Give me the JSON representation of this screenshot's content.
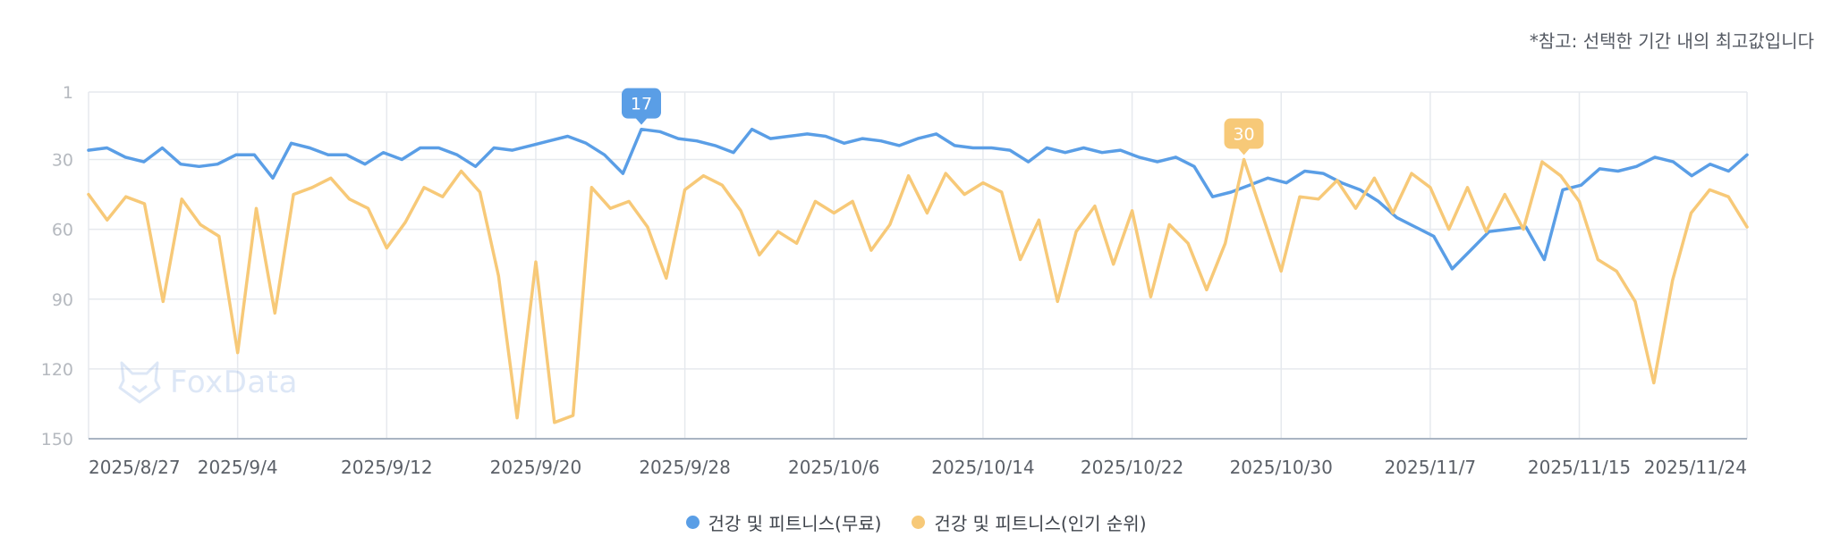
{
  "note": "*참고: 선택한 기간 내의 최고값입니다",
  "watermark": "FoxData",
  "colors": {
    "series_free": "#5a9ee6",
    "series_top": "#f7c978",
    "grid": "#e6e9ee",
    "axis_text": "#b5b9bf",
    "date_text": "#5b6068"
  },
  "chart_data": {
    "type": "line",
    "y_reversed": true,
    "ylim": [
      1,
      150
    ],
    "yticks": [
      1,
      30,
      60,
      90,
      120,
      150
    ],
    "x_start": "2025/8/27",
    "x_end": "2025/11/24",
    "x_tick_labels": [
      "2025/8/27",
      "2025/9/4",
      "2025/9/12",
      "2025/9/20",
      "2025/9/28",
      "2025/10/6",
      "2025/10/14",
      "2025/10/22",
      "2025/10/30",
      "2025/11/7",
      "2025/11/15",
      "2025/11/24"
    ],
    "grid": true,
    "legend_position": "bottom",
    "series": [
      {
        "name": "건강 및 피트니스(무료)",
        "color": "#5a9ee6",
        "peak_label": "17",
        "values": [
          26,
          25,
          29,
          31,
          25,
          32,
          33,
          32,
          28,
          28,
          38,
          23,
          25,
          28,
          28,
          32,
          27,
          30,
          25,
          25,
          28,
          33,
          25,
          26,
          24,
          22,
          20,
          23,
          28,
          36,
          17,
          18,
          21,
          22,
          24,
          27,
          17,
          21,
          20,
          19,
          20,
          23,
          21,
          22,
          24,
          21,
          19,
          24,
          25,
          25,
          26,
          31,
          25,
          27,
          25,
          27,
          26,
          29,
          31,
          29,
          33,
          46,
          44,
          41,
          38,
          40,
          35,
          36,
          40,
          43,
          48,
          55,
          59,
          63,
          77,
          69,
          61,
          60,
          59,
          73,
          43,
          41,
          34,
          35,
          33,
          29,
          31,
          37,
          32,
          35,
          28
        ]
      },
      {
        "name": "건강 및 피트니스(인기 순위)",
        "color": "#f7c978",
        "peak_label": "30",
        "values": [
          45,
          56,
          46,
          49,
          91,
          47,
          58,
          63,
          113,
          51,
          96,
          45,
          42,
          38,
          47,
          51,
          68,
          57,
          42,
          46,
          35,
          44,
          80,
          141,
          74,
          143,
          140,
          42,
          51,
          48,
          59,
          81,
          43,
          37,
          41,
          52,
          71,
          61,
          66,
          48,
          53,
          48,
          69,
          58,
          37,
          53,
          36,
          45,
          40,
          44,
          73,
          56,
          91,
          61,
          50,
          75,
          52,
          89,
          58,
          66,
          86,
          66,
          30,
          54,
          78,
          46,
          47,
          39,
          51,
          38,
          53,
          36,
          42,
          60,
          42,
          61,
          45,
          60,
          31,
          37,
          48,
          73,
          78,
          91,
          126,
          82,
          53,
          43,
          46,
          59
        ]
      }
    ]
  }
}
